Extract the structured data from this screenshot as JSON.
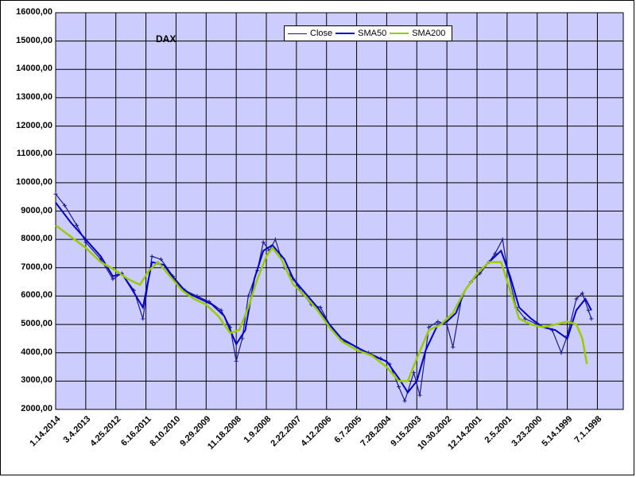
{
  "chart_data": {
    "type": "line",
    "title": "DAX",
    "xlabel": "",
    "ylabel": "",
    "ylim": [
      2000,
      16000
    ],
    "y_ticks": [
      "2000,00",
      "3000,00",
      "4000,00",
      "5000,00",
      "6000,00",
      "7000,00",
      "8000,00",
      "9000,00",
      "10000,00",
      "11000,00",
      "12000,00",
      "13000,00",
      "14000,00",
      "15000,00",
      "16000,00"
    ],
    "x_ticks": [
      "1.14.2014",
      "3.4.2013",
      "4.25.2012",
      "6.16.2011",
      "8.10.2010",
      "9.29.2009",
      "11.18.2008",
      "1.9.2008",
      "2.22.2007",
      "4.12.2006",
      "6.7.2005",
      "7.28.2004",
      "9.15.2003",
      "10.30.2002",
      "12.14.2001",
      "2.5.2001",
      "3.23.2000",
      "5.14.1999",
      "7.1.1998"
    ],
    "x_reversed": true,
    "grid": true,
    "legend_position": "top-center",
    "series": [
      {
        "name": "Close",
        "color": "#1a1a8c",
        "marker": "plus",
        "points": [
          [
            0,
            9600
          ],
          [
            0.3,
            9200
          ],
          [
            0.7,
            8500
          ],
          [
            1.0,
            7900
          ],
          [
            1.5,
            7300
          ],
          [
            1.9,
            6600
          ],
          [
            2.2,
            6800
          ],
          [
            2.6,
            6200
          ],
          [
            2.9,
            5200
          ],
          [
            3.2,
            7400
          ],
          [
            3.5,
            7300
          ],
          [
            3.9,
            6700
          ],
          [
            4.3,
            6200
          ],
          [
            4.7,
            6000
          ],
          [
            5.1,
            5800
          ],
          [
            5.5,
            5500
          ],
          [
            5.8,
            4900
          ],
          [
            6.0,
            3700
          ],
          [
            6.2,
            4500
          ],
          [
            6.4,
            6000
          ],
          [
            6.7,
            6900
          ],
          [
            6.9,
            7900
          ],
          [
            7.1,
            7600
          ],
          [
            7.3,
            8000
          ],
          [
            7.6,
            7000
          ],
          [
            7.9,
            6600
          ],
          [
            8.2,
            6100
          ],
          [
            8.5,
            5700
          ],
          [
            8.8,
            5600
          ],
          [
            9.2,
            4800
          ],
          [
            9.6,
            4400
          ],
          [
            10.0,
            4200
          ],
          [
            10.4,
            4000
          ],
          [
            10.8,
            3800
          ],
          [
            11.1,
            3600
          ],
          [
            11.4,
            2800
          ],
          [
            11.6,
            2300
          ],
          [
            11.9,
            3300
          ],
          [
            12.1,
            2500
          ],
          [
            12.4,
            4900
          ],
          [
            12.7,
            5100
          ],
          [
            13.0,
            5000
          ],
          [
            13.2,
            4200
          ],
          [
            13.5,
            6000
          ],
          [
            13.8,
            6500
          ],
          [
            14.1,
            6800
          ],
          [
            14.4,
            7200
          ],
          [
            14.6,
            7500
          ],
          [
            14.85,
            8000
          ],
          [
            15.0,
            7000
          ],
          [
            15.3,
            5600
          ],
          [
            15.6,
            5200
          ],
          [
            16.0,
            5000
          ],
          [
            16.5,
            4800
          ],
          [
            16.8,
            4000
          ],
          [
            17.0,
            4600
          ],
          [
            17.3,
            5900
          ],
          [
            17.5,
            6100
          ],
          [
            17.7,
            5500
          ],
          [
            17.8,
            5200
          ]
        ]
      },
      {
        "name": "SMA50",
        "color": "#0000cc",
        "marker": "none",
        "points": [
          [
            0,
            9300
          ],
          [
            0.5,
            8600
          ],
          [
            1.0,
            8000
          ],
          [
            1.5,
            7400
          ],
          [
            1.9,
            6700
          ],
          [
            2.2,
            6800
          ],
          [
            2.5,
            6300
          ],
          [
            2.9,
            5600
          ],
          [
            3.2,
            7200
          ],
          [
            3.6,
            7100
          ],
          [
            4.0,
            6500
          ],
          [
            4.4,
            6100
          ],
          [
            4.8,
            5900
          ],
          [
            5.2,
            5700
          ],
          [
            5.6,
            5300
          ],
          [
            6.0,
            4300
          ],
          [
            6.3,
            4800
          ],
          [
            6.6,
            6600
          ],
          [
            6.9,
            7600
          ],
          [
            7.2,
            7800
          ],
          [
            7.6,
            7300
          ],
          [
            7.9,
            6600
          ],
          [
            8.3,
            6100
          ],
          [
            8.7,
            5600
          ],
          [
            9.1,
            5000
          ],
          [
            9.5,
            4500
          ],
          [
            10.0,
            4200
          ],
          [
            10.5,
            3900
          ],
          [
            11.0,
            3700
          ],
          [
            11.4,
            3100
          ],
          [
            11.7,
            2600
          ],
          [
            12.0,
            3000
          ],
          [
            12.3,
            4100
          ],
          [
            12.7,
            5000
          ],
          [
            13.0,
            5100
          ],
          [
            13.3,
            5400
          ],
          [
            13.6,
            6200
          ],
          [
            14.0,
            6800
          ],
          [
            14.4,
            7200
          ],
          [
            14.8,
            7600
          ],
          [
            15.1,
            6700
          ],
          [
            15.4,
            5600
          ],
          [
            15.8,
            5200
          ],
          [
            16.2,
            4900
          ],
          [
            16.6,
            4800
          ],
          [
            17.0,
            4500
          ],
          [
            17.3,
            5500
          ],
          [
            17.6,
            5900
          ],
          [
            17.8,
            5500
          ]
        ]
      },
      {
        "name": "SMA200",
        "color": "#99cc00",
        "marker": "none",
        "points": [
          [
            0,
            8500
          ],
          [
            0.5,
            8100
          ],
          [
            1.0,
            7700
          ],
          [
            1.5,
            7200
          ],
          [
            2.0,
            6900
          ],
          [
            2.4,
            6600
          ],
          [
            2.8,
            6400
          ],
          [
            3.1,
            6900
          ],
          [
            3.4,
            7200
          ],
          [
            3.8,
            6700
          ],
          [
            4.2,
            6200
          ],
          [
            4.6,
            5900
          ],
          [
            5.0,
            5700
          ],
          [
            5.4,
            5300
          ],
          [
            5.8,
            4700
          ],
          [
            6.1,
            4800
          ],
          [
            6.4,
            5600
          ],
          [
            6.7,
            6600
          ],
          [
            7.0,
            7400
          ],
          [
            7.2,
            7700
          ],
          [
            7.5,
            7300
          ],
          [
            7.9,
            6400
          ],
          [
            8.3,
            6000
          ],
          [
            8.7,
            5500
          ],
          [
            9.1,
            4900
          ],
          [
            9.5,
            4400
          ],
          [
            10.0,
            4100
          ],
          [
            10.5,
            3900
          ],
          [
            11.0,
            3500
          ],
          [
            11.4,
            3000
          ],
          [
            11.7,
            3000
          ],
          [
            12.0,
            3800
          ],
          [
            12.4,
            4800
          ],
          [
            12.8,
            5000
          ],
          [
            13.2,
            5400
          ],
          [
            13.6,
            6200
          ],
          [
            14.0,
            6800
          ],
          [
            14.4,
            7200
          ],
          [
            14.8,
            7200
          ],
          [
            15.1,
            6200
          ],
          [
            15.4,
            5200
          ],
          [
            15.8,
            5000
          ],
          [
            16.2,
            4900
          ],
          [
            16.6,
            5000
          ],
          [
            17.0,
            5100
          ],
          [
            17.3,
            5000
          ],
          [
            17.5,
            4500
          ],
          [
            17.65,
            3600
          ]
        ]
      }
    ]
  },
  "colors": {
    "plot_bg": "#ccccff",
    "grid": "#000000",
    "page_bg": "#ffffff"
  }
}
